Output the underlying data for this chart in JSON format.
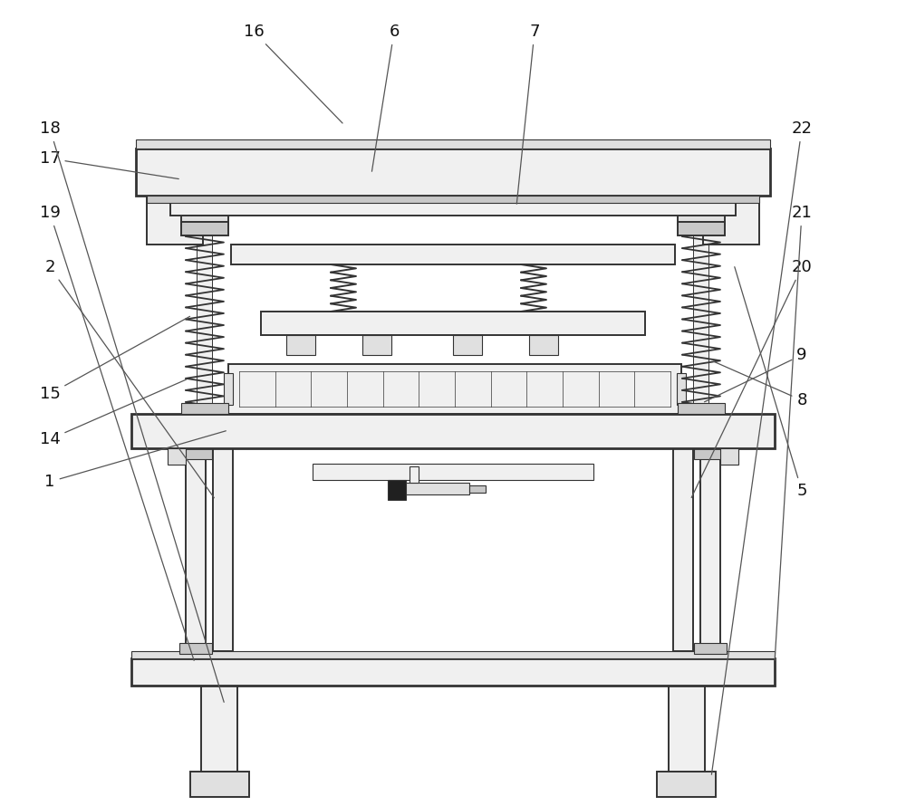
{
  "bg_color": "#ffffff",
  "lc": "#333333",
  "fc_white": "#ffffff",
  "fc_light": "#f0f0f0",
  "fc_mid": "#e0e0e0",
  "fc_dark": "#c8c8c8",
  "fc_vdark": "#a0a0a0",
  "lw_main": 1.4,
  "lw_thin": 0.8,
  "lw_thick": 2.0,
  "labels_data": [
    [
      "16",
      2.8,
      8.55,
      3.8,
      7.52
    ],
    [
      "6",
      4.35,
      8.55,
      4.1,
      6.98
    ],
    [
      "7",
      5.9,
      8.55,
      5.7,
      6.62
    ],
    [
      "17",
      0.55,
      7.15,
      2.0,
      6.92
    ],
    [
      "5",
      8.85,
      3.48,
      8.1,
      5.98
    ],
    [
      "15",
      0.55,
      4.55,
      2.12,
      5.42
    ],
    [
      "14",
      0.55,
      4.05,
      2.08,
      4.72
    ],
    [
      "1",
      0.55,
      3.58,
      2.52,
      4.15
    ],
    [
      "8",
      8.85,
      4.48,
      7.85,
      4.92
    ],
    [
      "9",
      8.85,
      4.98,
      7.75,
      4.45
    ],
    [
      "2",
      0.55,
      5.95,
      2.38,
      3.38
    ],
    [
      "19",
      0.55,
      6.55,
      2.15,
      1.58
    ],
    [
      "18",
      0.55,
      7.48,
      2.48,
      1.12
    ],
    [
      "20",
      8.85,
      5.95,
      7.62,
      3.38
    ],
    [
      "21",
      8.85,
      6.55,
      8.55,
      1.58
    ],
    [
      "22",
      8.85,
      7.48,
      7.85,
      0.32
    ]
  ]
}
